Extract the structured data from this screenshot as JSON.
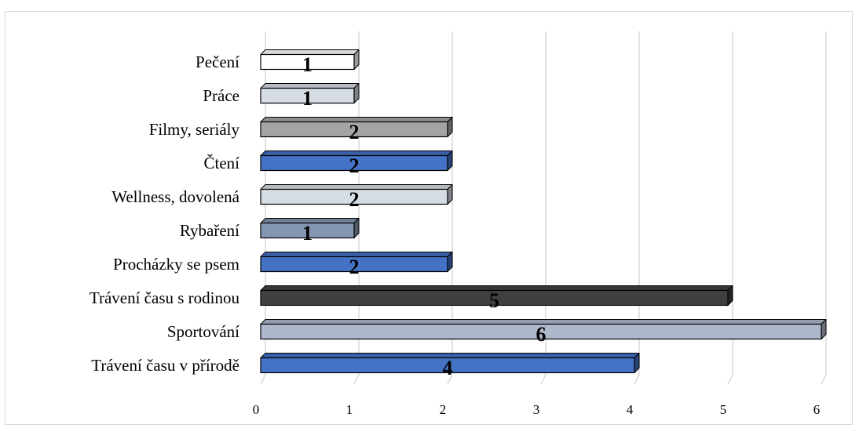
{
  "chart_data": {
    "type": "bar",
    "orientation": "horizontal",
    "categories": [
      "Trávení času v přírodě",
      "Sportování",
      "Trávení času s rodinou",
      "Procházky se psem",
      "Rybaření",
      "Wellness, dovolená",
      "Čtení",
      "Filmy, seriály",
      "Práce",
      "Pečení"
    ],
    "values": [
      4,
      6,
      5,
      2,
      1,
      2,
      2,
      2,
      1,
      1
    ],
    "bar_colors": [
      "#4472c4",
      "#adb9ca",
      "#404040",
      "#4472c4",
      "#8497b0",
      "#d6dce4",
      "#4472c4",
      "#a5a5a5",
      "#d6dce4",
      "#ffffff"
    ],
    "xlim": [
      0,
      6
    ],
    "xticks": [
      "0",
      "1",
      "2",
      "3",
      "4",
      "5",
      "6"
    ],
    "data_labels": true,
    "grid": true,
    "title": "",
    "xlabel": "",
    "ylabel": ""
  }
}
